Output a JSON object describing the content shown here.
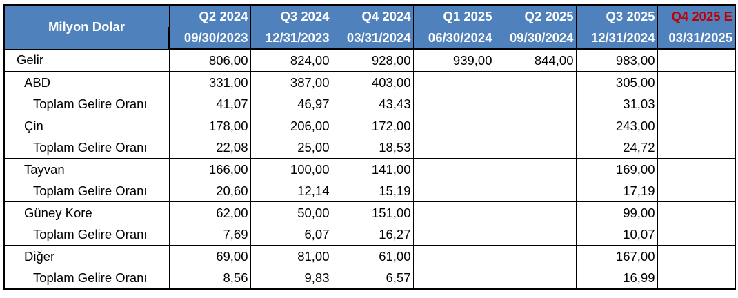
{
  "table": {
    "corner_label": "Milyon Dolar",
    "columns": [
      {
        "quarter": "Q2 2024",
        "date": "09/30/2023",
        "estimate": false
      },
      {
        "quarter": "Q3 2024",
        "date": "12/31/2023",
        "estimate": false
      },
      {
        "quarter": "Q4 2024",
        "date": "03/31/2024",
        "estimate": false
      },
      {
        "quarter": "Q1 2025",
        "date": "06/30/2024",
        "estimate": false
      },
      {
        "quarter": "Q2 2025",
        "date": "09/30/2024",
        "estimate": false
      },
      {
        "quarter": "Q3 2025",
        "date": "12/31/2024",
        "estimate": false
      },
      {
        "quarter": "Q4 2025 E",
        "date": "03/31/2025",
        "estimate": true
      }
    ],
    "rows": [
      {
        "label": "Gelir",
        "level": 0,
        "group_start": true,
        "values": [
          "806,00",
          "824,00",
          "928,00",
          "939,00",
          "844,00",
          "983,00",
          ""
        ]
      },
      {
        "label": "ABD",
        "level": 1,
        "group_start": true,
        "values": [
          "331,00",
          "387,00",
          "403,00",
          "",
          "",
          "305,00",
          ""
        ]
      },
      {
        "label": "Toplam Gelire Oranı",
        "level": 2,
        "group_start": false,
        "values": [
          "41,07",
          "46,97",
          "43,43",
          "",
          "",
          "31,03",
          ""
        ]
      },
      {
        "label": "Çin",
        "level": 1,
        "group_start": true,
        "values": [
          "178,00",
          "206,00",
          "172,00",
          "",
          "",
          "243,00",
          ""
        ]
      },
      {
        "label": "Toplam Gelire Oranı",
        "level": 2,
        "group_start": false,
        "values": [
          "22,08",
          "25,00",
          "18,53",
          "",
          "",
          "24,72",
          ""
        ]
      },
      {
        "label": "Tayvan",
        "level": 1,
        "group_start": true,
        "values": [
          "166,00",
          "100,00",
          "141,00",
          "",
          "",
          "169,00",
          ""
        ]
      },
      {
        "label": "Toplam Gelire Oranı",
        "level": 2,
        "group_start": false,
        "values": [
          "20,60",
          "12,14",
          "15,19",
          "",
          "",
          "17,19",
          ""
        ]
      },
      {
        "label": "Güney Kore",
        "level": 1,
        "group_start": true,
        "values": [
          "62,00",
          "50,00",
          "151,00",
          "",
          "",
          "99,00",
          ""
        ]
      },
      {
        "label": "Toplam Gelire Oranı",
        "level": 2,
        "group_start": false,
        "values": [
          "7,69",
          "6,07",
          "16,27",
          "",
          "",
          "10,07",
          ""
        ]
      },
      {
        "label": "Diğer",
        "level": 1,
        "group_start": true,
        "values": [
          "69,00",
          "81,00",
          "61,00",
          "",
          "",
          "167,00",
          ""
        ]
      },
      {
        "label": "Toplam Gelire Oranı",
        "level": 2,
        "group_start": false,
        "values": [
          "8,56",
          "9,83",
          "6,57",
          "",
          "",
          "16,99",
          ""
        ]
      }
    ]
  },
  "colors": {
    "header_bg": "#4f81bd",
    "header_text": "#ffffff",
    "estimate_text": "#c00000",
    "border": "#000000"
  }
}
